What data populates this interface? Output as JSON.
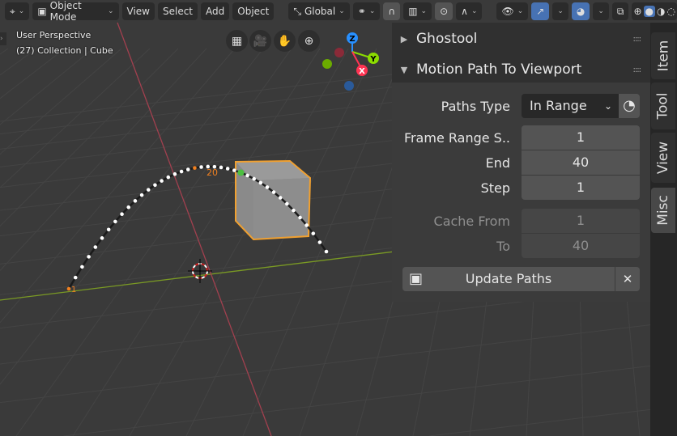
{
  "header": {
    "editor_icon": "viewport-icon",
    "mode": "Object Mode",
    "menus": [
      "View",
      "Select",
      "Add",
      "Object"
    ],
    "transform_orientation": "Global"
  },
  "overlay": {
    "perspective": "User Perspective",
    "collection": "(27) Collection | Cube"
  },
  "gizmo": {
    "axes": [
      "X",
      "Y",
      "Z"
    ]
  },
  "motion_path": {
    "frame_labels": [
      "1",
      "20"
    ]
  },
  "panel": {
    "ghostool": "Ghostool",
    "motion_path_title": "Motion Path To Viewport",
    "paths_type_label": "Paths Type",
    "paths_type": "In Range",
    "frame_range_start_label": "Frame Range S..",
    "frame_range_start": "1",
    "end_label": "End",
    "end": "40",
    "step_label": "Step",
    "step": "1",
    "cache_from_label": "Cache From",
    "cache_from": "1",
    "to_label": "To",
    "to": "40",
    "update_paths": "Update Paths",
    "close": "✕"
  },
  "tabs": [
    "Item",
    "Tool",
    "View",
    "Misc"
  ],
  "active_tab": "Misc",
  "colors": {
    "accent": "#4772b3",
    "selection": "#f0a030",
    "x_axis": "#ff3352",
    "y_axis": "#8bdc00",
    "z_axis": "#2890ff"
  }
}
